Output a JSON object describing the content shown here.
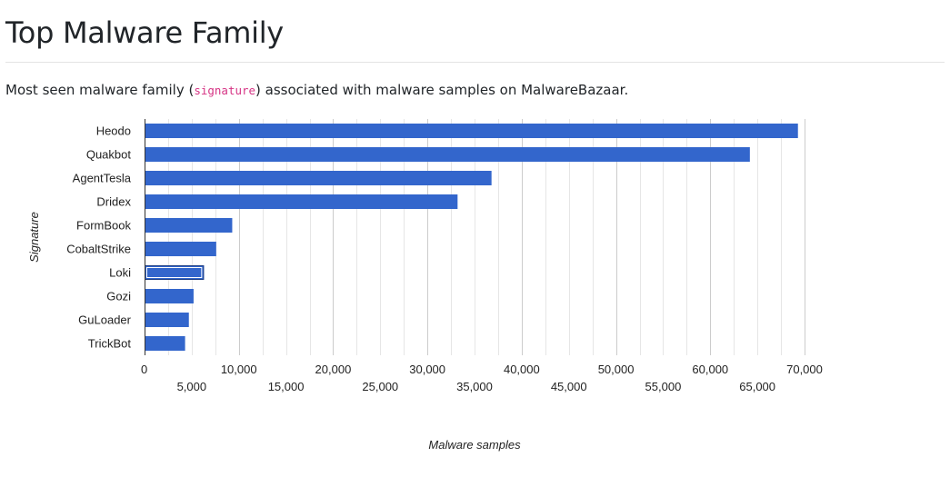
{
  "page": {
    "title": "Top Malware Family",
    "description_before": "Most seen malware family (",
    "description_code": "signature",
    "description_after": ") associated with malware samples on MalwareBazaar."
  },
  "colors": {
    "bar": "#3366cc",
    "gridline": "#e6e6e6",
    "gridline_major": "#cccccc",
    "baseline": "#333333",
    "selected_outline": "#1a3a80"
  },
  "chart_data": {
    "type": "bar",
    "orientation": "horizontal",
    "title": "",
    "xlabel": "Malware samples",
    "ylabel": "Signature",
    "categories": [
      "Heodo",
      "Quakbot",
      "AgentTesla",
      "Dridex",
      "FormBook",
      "CobaltStrike",
      "Loki",
      "Gozi",
      "GuLoader",
      "TrickBot"
    ],
    "values": [
      69300,
      64200,
      36800,
      33200,
      9300,
      7600,
      6300,
      5200,
      4700,
      4300
    ],
    "xlim": [
      0,
      70000
    ],
    "ticks_row1": [
      "0",
      "10,000",
      "20,000",
      "30,000",
      "40,000",
      "50,000",
      "60,000",
      "70,000"
    ],
    "ticks_row2": [
      "5,000",
      "15,000",
      "25,000",
      "35,000",
      "45,000",
      "55,000",
      "65,000"
    ],
    "grid": true,
    "highlighted_category": "Loki"
  }
}
